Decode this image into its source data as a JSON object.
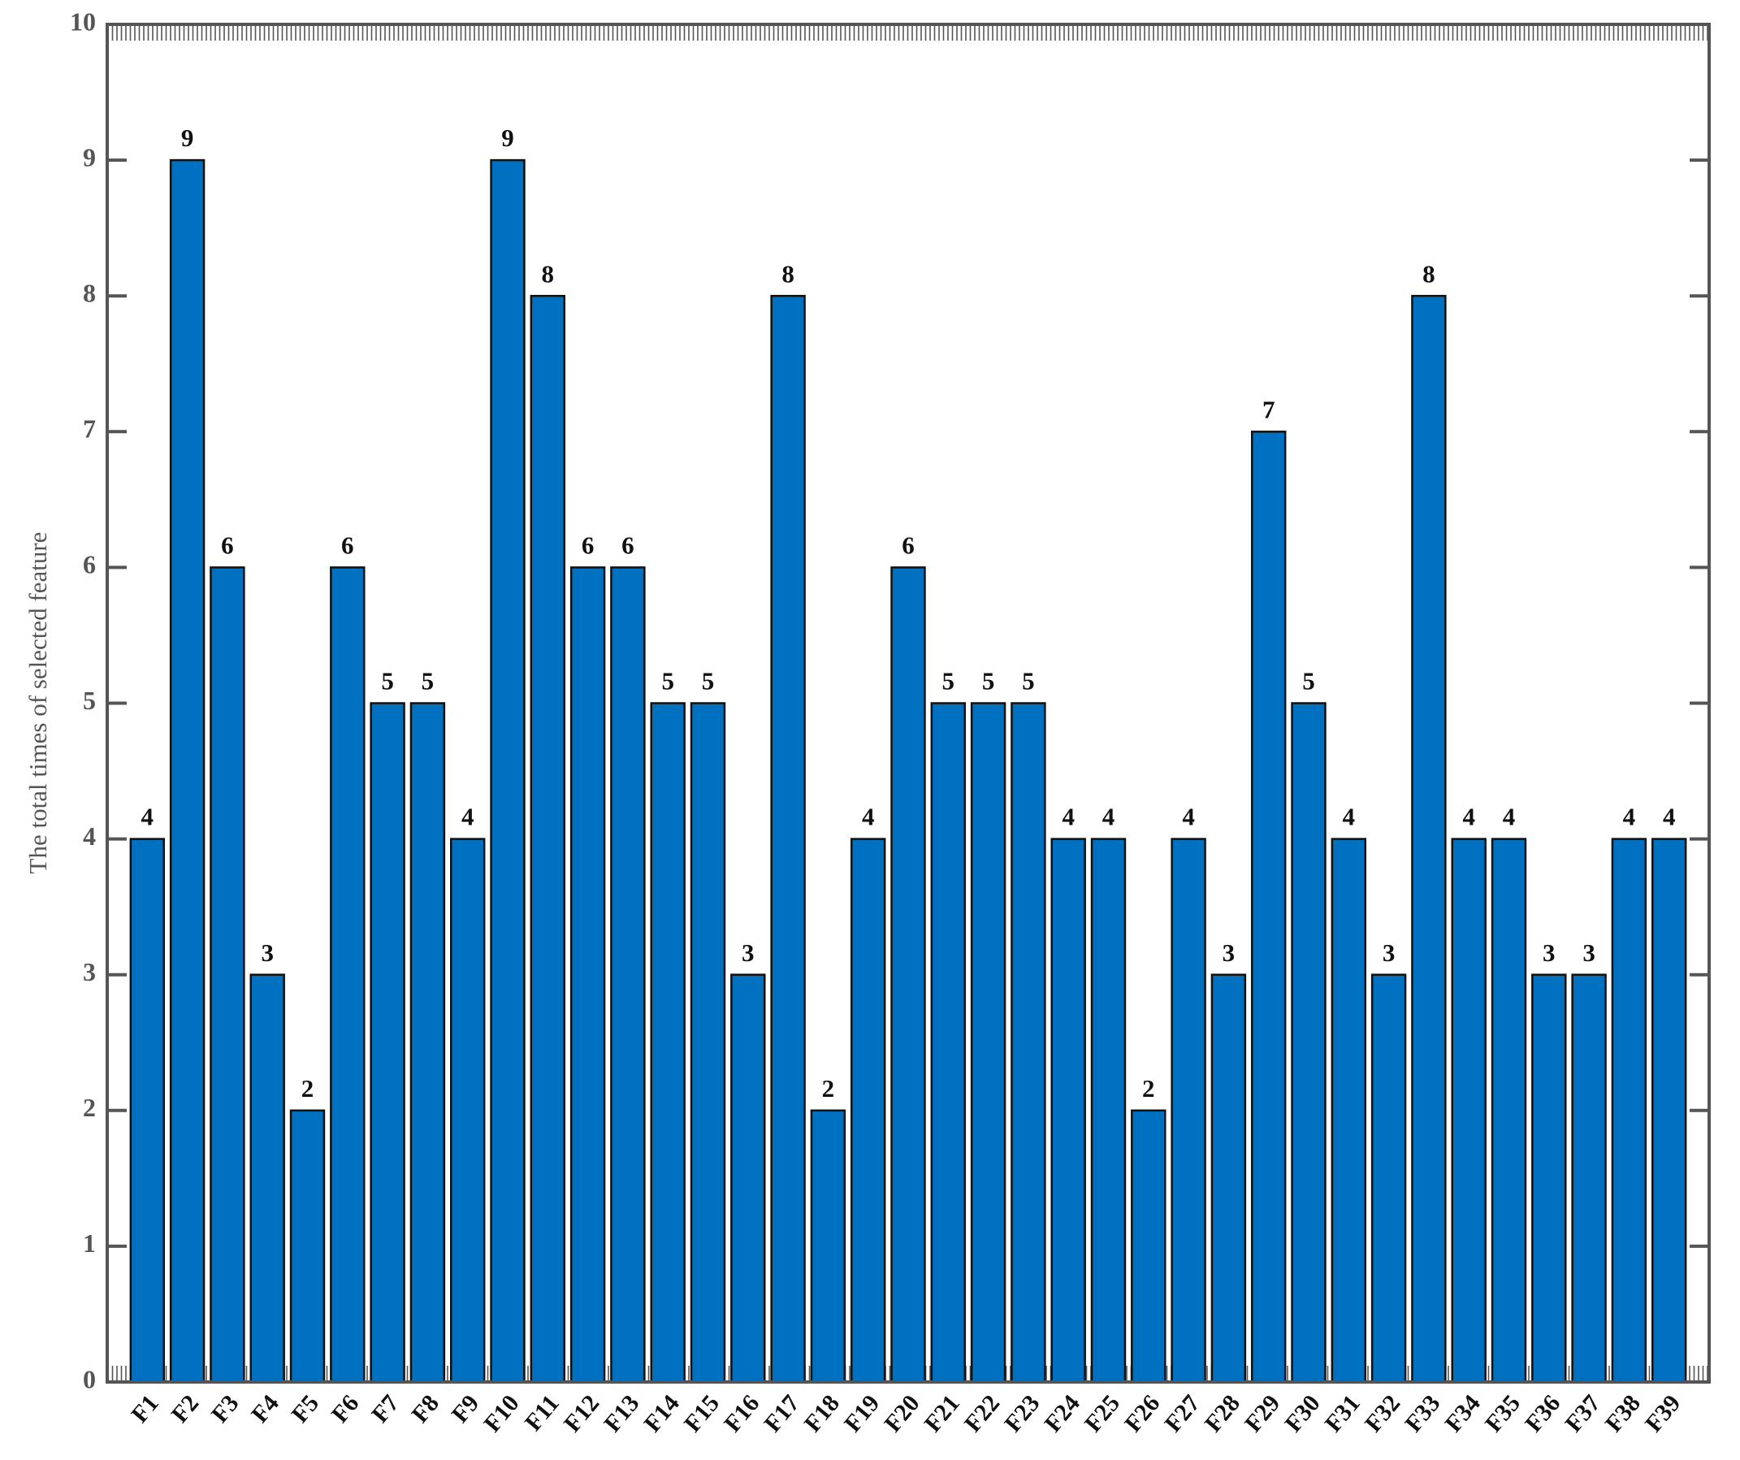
{
  "chart_data": {
    "type": "bar",
    "y_label": "The total times of selected feature",
    "categories": [
      "F1",
      "F2",
      "F3",
      "F4",
      "F5",
      "F6",
      "F7",
      "F8",
      "F9",
      "F10",
      "F11",
      "F12",
      "F13",
      "F14",
      "F15",
      "F16",
      "F17",
      "F18",
      "F19",
      "F20",
      "F21",
      "F22",
      "F23",
      "F24",
      "F25",
      "F26",
      "F27",
      "F28",
      "F29",
      "F30",
      "F31",
      "F32",
      "F33",
      "F34",
      "F35",
      "F36",
      "F37",
      "F38",
      "F39"
    ],
    "values": [
      4,
      9,
      6,
      3,
      2,
      6,
      5,
      5,
      4,
      9,
      8,
      6,
      6,
      5,
      5,
      3,
      8,
      2,
      4,
      6,
      5,
      5,
      5,
      4,
      4,
      2,
      4,
      3,
      7,
      5,
      4,
      3,
      8,
      4,
      4,
      3,
      3,
      4,
      4
    ],
    "color": "#0070c0",
    "ylim": [
      0,
      10
    ],
    "yticks": [
      0,
      1,
      2,
      3,
      4,
      5,
      6,
      7,
      8,
      9,
      10
    ]
  }
}
